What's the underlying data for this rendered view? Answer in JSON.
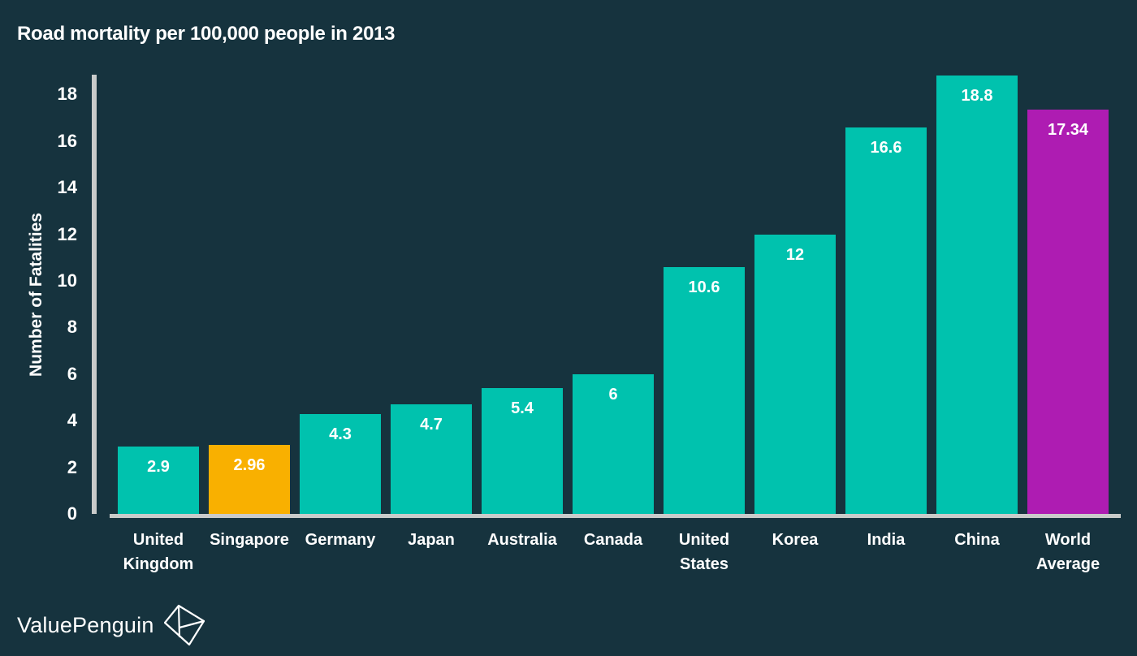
{
  "title": "Road mortality per 100,000 people in 2013",
  "branding": {
    "wordmark": "ValuePenguin",
    "logo_icon": "valuepenguin-origami-diamond-icon"
  },
  "colors": {
    "background": "#16333E",
    "bar_default": "#00C2AE",
    "bar_singapore_highlight": "#F9B000",
    "bar_world_average_highlight": "#AE1CB2",
    "axis": "#C9CBCA",
    "text": "#FFFFFF"
  },
  "chart_data": {
    "type": "bar",
    "title": "Road mortality per 100,000 people in 2013",
    "xlabel": "",
    "ylabel": "Number of Fatalities",
    "ylim": [
      0,
      18.9
    ],
    "yticks": [
      0,
      2,
      4,
      6,
      8,
      10,
      12,
      14,
      16,
      18
    ],
    "grid": false,
    "legend": false,
    "categories": [
      "United Kingdom",
      "Singapore",
      "Germany",
      "Japan",
      "Australia",
      "Canada",
      "United States",
      "Korea",
      "India",
      "China",
      "World Average"
    ],
    "values": [
      2.9,
      2.96,
      4.3,
      4.7,
      5.4,
      6,
      10.6,
      12,
      16.6,
      18.8,
      17.34
    ],
    "value_labels": [
      "2.9",
      "2.96",
      "4.3",
      "4.7",
      "5.4",
      "6",
      "10.6",
      "12",
      "16.6",
      "18.8",
      "17.34"
    ],
    "bar_colors": [
      "#00C2AE",
      "#F9B000",
      "#00C2AE",
      "#00C2AE",
      "#00C2AE",
      "#00C2AE",
      "#00C2AE",
      "#00C2AE",
      "#00C2AE",
      "#00C2AE",
      "#AE1CB2"
    ]
  }
}
